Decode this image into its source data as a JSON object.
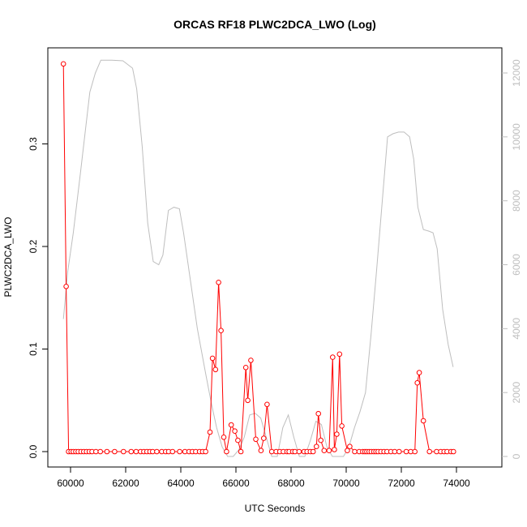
{
  "chart_data": {
    "type": "line",
    "title": "ORCAS RF18 PLWC2DCA_LWO (Log)",
    "xlabel": "UTC Seconds",
    "ylabel": "PLWC2DCA_LWO",
    "xlim": [
      59700,
      74000
    ],
    "ylim": [
      0,
      0.38
    ],
    "y2lim": [
      0,
      12200
    ],
    "grid": false,
    "x_ticks": [
      60000,
      62000,
      64000,
      66000,
      68000,
      70000,
      72000,
      74000
    ],
    "y_ticks": [
      0.0,
      0.1,
      0.2,
      0.3
    ],
    "y_tick_labels": [
      "0.0",
      "0.1",
      "0.2",
      "0.3"
    ],
    "y2_ticks": [
      0,
      2000,
      4000,
      6000,
      8000,
      10000,
      12000
    ],
    "colors": {
      "primary": "#ff0000",
      "secondary": "#bebebe",
      "frame": "#000000"
    },
    "series": [
      {
        "axis": "left",
        "style": "line-with-open-circles",
        "color": "#ff0000",
        "x": [
          59740,
          59840,
          59930,
          60020,
          60100,
          60190,
          60280,
          60380,
          60480,
          60580,
          60680,
          60780,
          60920,
          61080,
          61320,
          61600,
          61920,
          62200,
          62380,
          62540,
          62660,
          62770,
          62880,
          62980,
          63130,
          63310,
          63450,
          63560,
          63700,
          63960,
          64150,
          64300,
          64420,
          64540,
          64680,
          64790,
          64900,
          65060,
          65150,
          65260,
          65370,
          65460,
          65560,
          65660,
          65830,
          65960,
          66070,
          66180,
          66360,
          66430,
          66540,
          66720,
          66910,
          67010,
          67130,
          67300,
          67460,
          67590,
          67720,
          67850,
          67930,
          68060,
          68140,
          68290,
          68470,
          68580,
          68700,
          68800,
          68920,
          68990,
          69080,
          69200,
          69380,
          69510,
          69570,
          69660,
          69760,
          69840,
          70040,
          70130,
          70310,
          70470,
          70600,
          70680,
          70750,
          70830,
          70910,
          71000,
          71080,
          71160,
          71260,
          71370,
          71480,
          71620,
          71760,
          71920,
          72180,
          72340,
          72490,
          72580,
          72650,
          72800,
          73020,
          73280,
          73430,
          73550,
          73660,
          73800,
          73890
        ],
        "values": [
          0.378,
          0.161,
          0.0,
          0.0,
          0.0,
          0.0,
          0.0,
          0.0,
          0.0,
          0.0,
          0.0,
          0.0,
          0.0,
          0.0,
          0.0,
          0.0,
          0.0,
          0.0,
          0.0,
          0.0,
          0.0,
          0.0,
          0.0,
          0.0,
          0.0,
          0.0,
          0.0,
          0.0,
          0.0,
          0.0,
          0.0,
          0.0,
          0.0,
          0.0,
          0.0,
          0.0,
          0.0,
          0.019,
          0.091,
          0.08,
          0.165,
          0.118,
          0.014,
          0.0,
          0.026,
          0.02,
          0.011,
          0.0,
          0.082,
          0.05,
          0.089,
          0.012,
          0.001,
          0.013,
          0.046,
          0.0,
          0.0,
          0.0,
          0.0,
          0.0,
          0.0,
          0.0,
          0.0,
          0.0,
          0.0,
          0.0,
          0.0,
          0.0,
          0.005,
          0.037,
          0.011,
          0.001,
          0.001,
          0.092,
          0.002,
          0.017,
          0.095,
          0.025,
          0.001,
          0.005,
          0.0,
          0.0,
          0.0,
          0.0,
          0.0,
          0.0,
          0.0,
          0.0,
          0.0,
          0.0,
          0.0,
          0.0,
          0.0,
          0.0,
          0.0,
          0.0,
          0.0,
          0.0,
          0.0,
          0.067,
          0.077,
          0.03,
          0.0,
          0.0,
          0.0,
          0.0,
          0.0,
          0.0,
          0.0
        ]
      },
      {
        "axis": "right",
        "style": "line",
        "color": "#bebebe",
        "x": [
          59740,
          59900,
          60100,
          60350,
          60700,
          60900,
          61100,
          61500,
          61900,
          62250,
          62400,
          62600,
          62800,
          63000,
          63200,
          63350,
          63550,
          63750,
          63950,
          64100,
          64350,
          64600,
          64900,
          65100,
          65300,
          65500,
          65700,
          65900,
          66100,
          66300,
          66500,
          66700,
          66900,
          67100,
          67300,
          67500,
          67700,
          67900,
          68100,
          68300,
          68500,
          68700,
          68900,
          69100,
          69300,
          69500,
          69700,
          69900,
          70100,
          70300,
          70500,
          70700,
          70900,
          71100,
          71300,
          71500,
          71700,
          71900,
          72100,
          72300,
          72450,
          72600,
          72800,
          73000,
          73150,
          73300,
          73500,
          73700,
          73880
        ],
        "values": [
          4300,
          5800,
          7000,
          8800,
          11400,
          12000,
          12400,
          12400,
          12380,
          12150,
          11500,
          9700,
          7300,
          6100,
          6000,
          6300,
          7700,
          7800,
          7750,
          7000,
          5500,
          4000,
          2600,
          1700,
          900,
          300,
          0,
          0,
          200,
          600,
          1300,
          1350,
          1200,
          600,
          0,
          0,
          900,
          1300,
          600,
          0,
          0,
          500,
          1100,
          1000,
          300,
          0,
          0,
          0,
          300,
          900,
          1400,
          2000,
          3800,
          5800,
          7900,
          10000,
          10100,
          10150,
          10150,
          10000,
          9300,
          7800,
          7100,
          7050,
          7000,
          6500,
          4600,
          3500,
          2800
        ]
      }
    ]
  }
}
